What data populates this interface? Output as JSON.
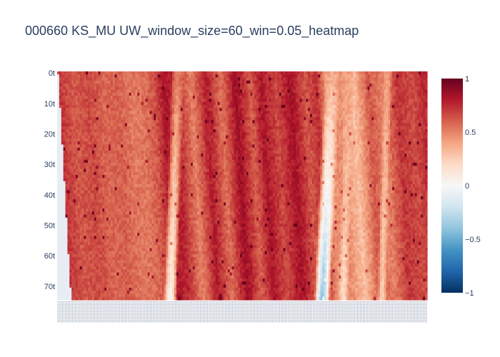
{
  "chart_data": {
    "type": "heatmap",
    "title": "000660 KS_MU UW_window_size=60_win=0.05_heatmap",
    "xlabel": "",
    "ylabel": "",
    "rows": 75,
    "y_tick_labels": [
      "0t",
      "10t",
      "20t",
      "30t",
      "40t",
      "50t",
      "60t",
      "70t"
    ],
    "y_tick_rows": [
      0,
      10,
      20,
      30,
      40,
      50,
      60,
      70
    ],
    "z_range": [
      -1,
      1
    ],
    "colorbar_ticks": [
      1,
      0.5,
      0,
      -0.5,
      -1
    ],
    "colorbar_tick_labels": [
      "1",
      "0.5",
      "0",
      "−0.5",
      "−1"
    ],
    "colorscale": [
      "#053061",
      "#2166ac",
      "#4393c3",
      "#92c5de",
      "#d1e5f0",
      "#f7f7f7",
      "#fddbc7",
      "#f4a582",
      "#d6604d",
      "#b2182b",
      "#67001f"
    ],
    "column_profile": [
      {
        "pos": 0.0,
        "value": 0.72
      },
      {
        "pos": 0.04,
        "value": 0.62
      },
      {
        "pos": 0.08,
        "value": 0.66
      },
      {
        "pos": 0.12,
        "value": 0.58
      },
      {
        "pos": 0.16,
        "value": 0.6
      },
      {
        "pos": 0.2,
        "value": 0.52
      },
      {
        "pos": 0.23,
        "value": 0.55
      },
      {
        "pos": 0.255,
        "value": 0.62
      },
      {
        "pos": 0.285,
        "value": 0.82
      },
      {
        "pos": 0.32,
        "value": 0.75
      },
      {
        "pos": 0.36,
        "value": 0.5
      },
      {
        "pos": 0.4,
        "value": 0.8
      },
      {
        "pos": 0.44,
        "value": 0.55
      },
      {
        "pos": 0.48,
        "value": 0.86
      },
      {
        "pos": 0.52,
        "value": 0.6
      },
      {
        "pos": 0.55,
        "value": 0.82
      },
      {
        "pos": 0.59,
        "value": 0.66
      },
      {
        "pos": 0.63,
        "value": 0.84
      },
      {
        "pos": 0.67,
        "value": 0.62
      },
      {
        "pos": 0.7,
        "value": 0.74
      },
      {
        "pos": 0.725,
        "value": 0.45
      },
      {
        "pos": 0.76,
        "value": 0.48
      },
      {
        "pos": 0.8,
        "value": 0.3
      },
      {
        "pos": 0.84,
        "value": 0.62
      },
      {
        "pos": 0.88,
        "value": 0.5
      },
      {
        "pos": 0.92,
        "value": 0.72
      },
      {
        "pos": 0.96,
        "value": 0.65
      },
      {
        "pos": 1.0,
        "value": 0.78
      }
    ],
    "bands": [
      {
        "pos_top": 0.325,
        "pos_bottom": 0.305,
        "width": 0.018,
        "value_top": 0.52,
        "value_bottom": 0.05
      },
      {
        "pos_top": 0.745,
        "pos_bottom": 0.718,
        "width": 0.022,
        "value_top": 0.38,
        "value_bottom": -0.38
      },
      {
        "pos_top": 0.79,
        "pos_bottom": 0.775,
        "width": 0.014,
        "value_top": 0.42,
        "value_bottom": 0.2
      },
      {
        "pos_top": 0.895,
        "pos_bottom": 0.88,
        "width": 0.012,
        "value_top": 0.4,
        "value_bottom": 0.25
      }
    ]
  }
}
